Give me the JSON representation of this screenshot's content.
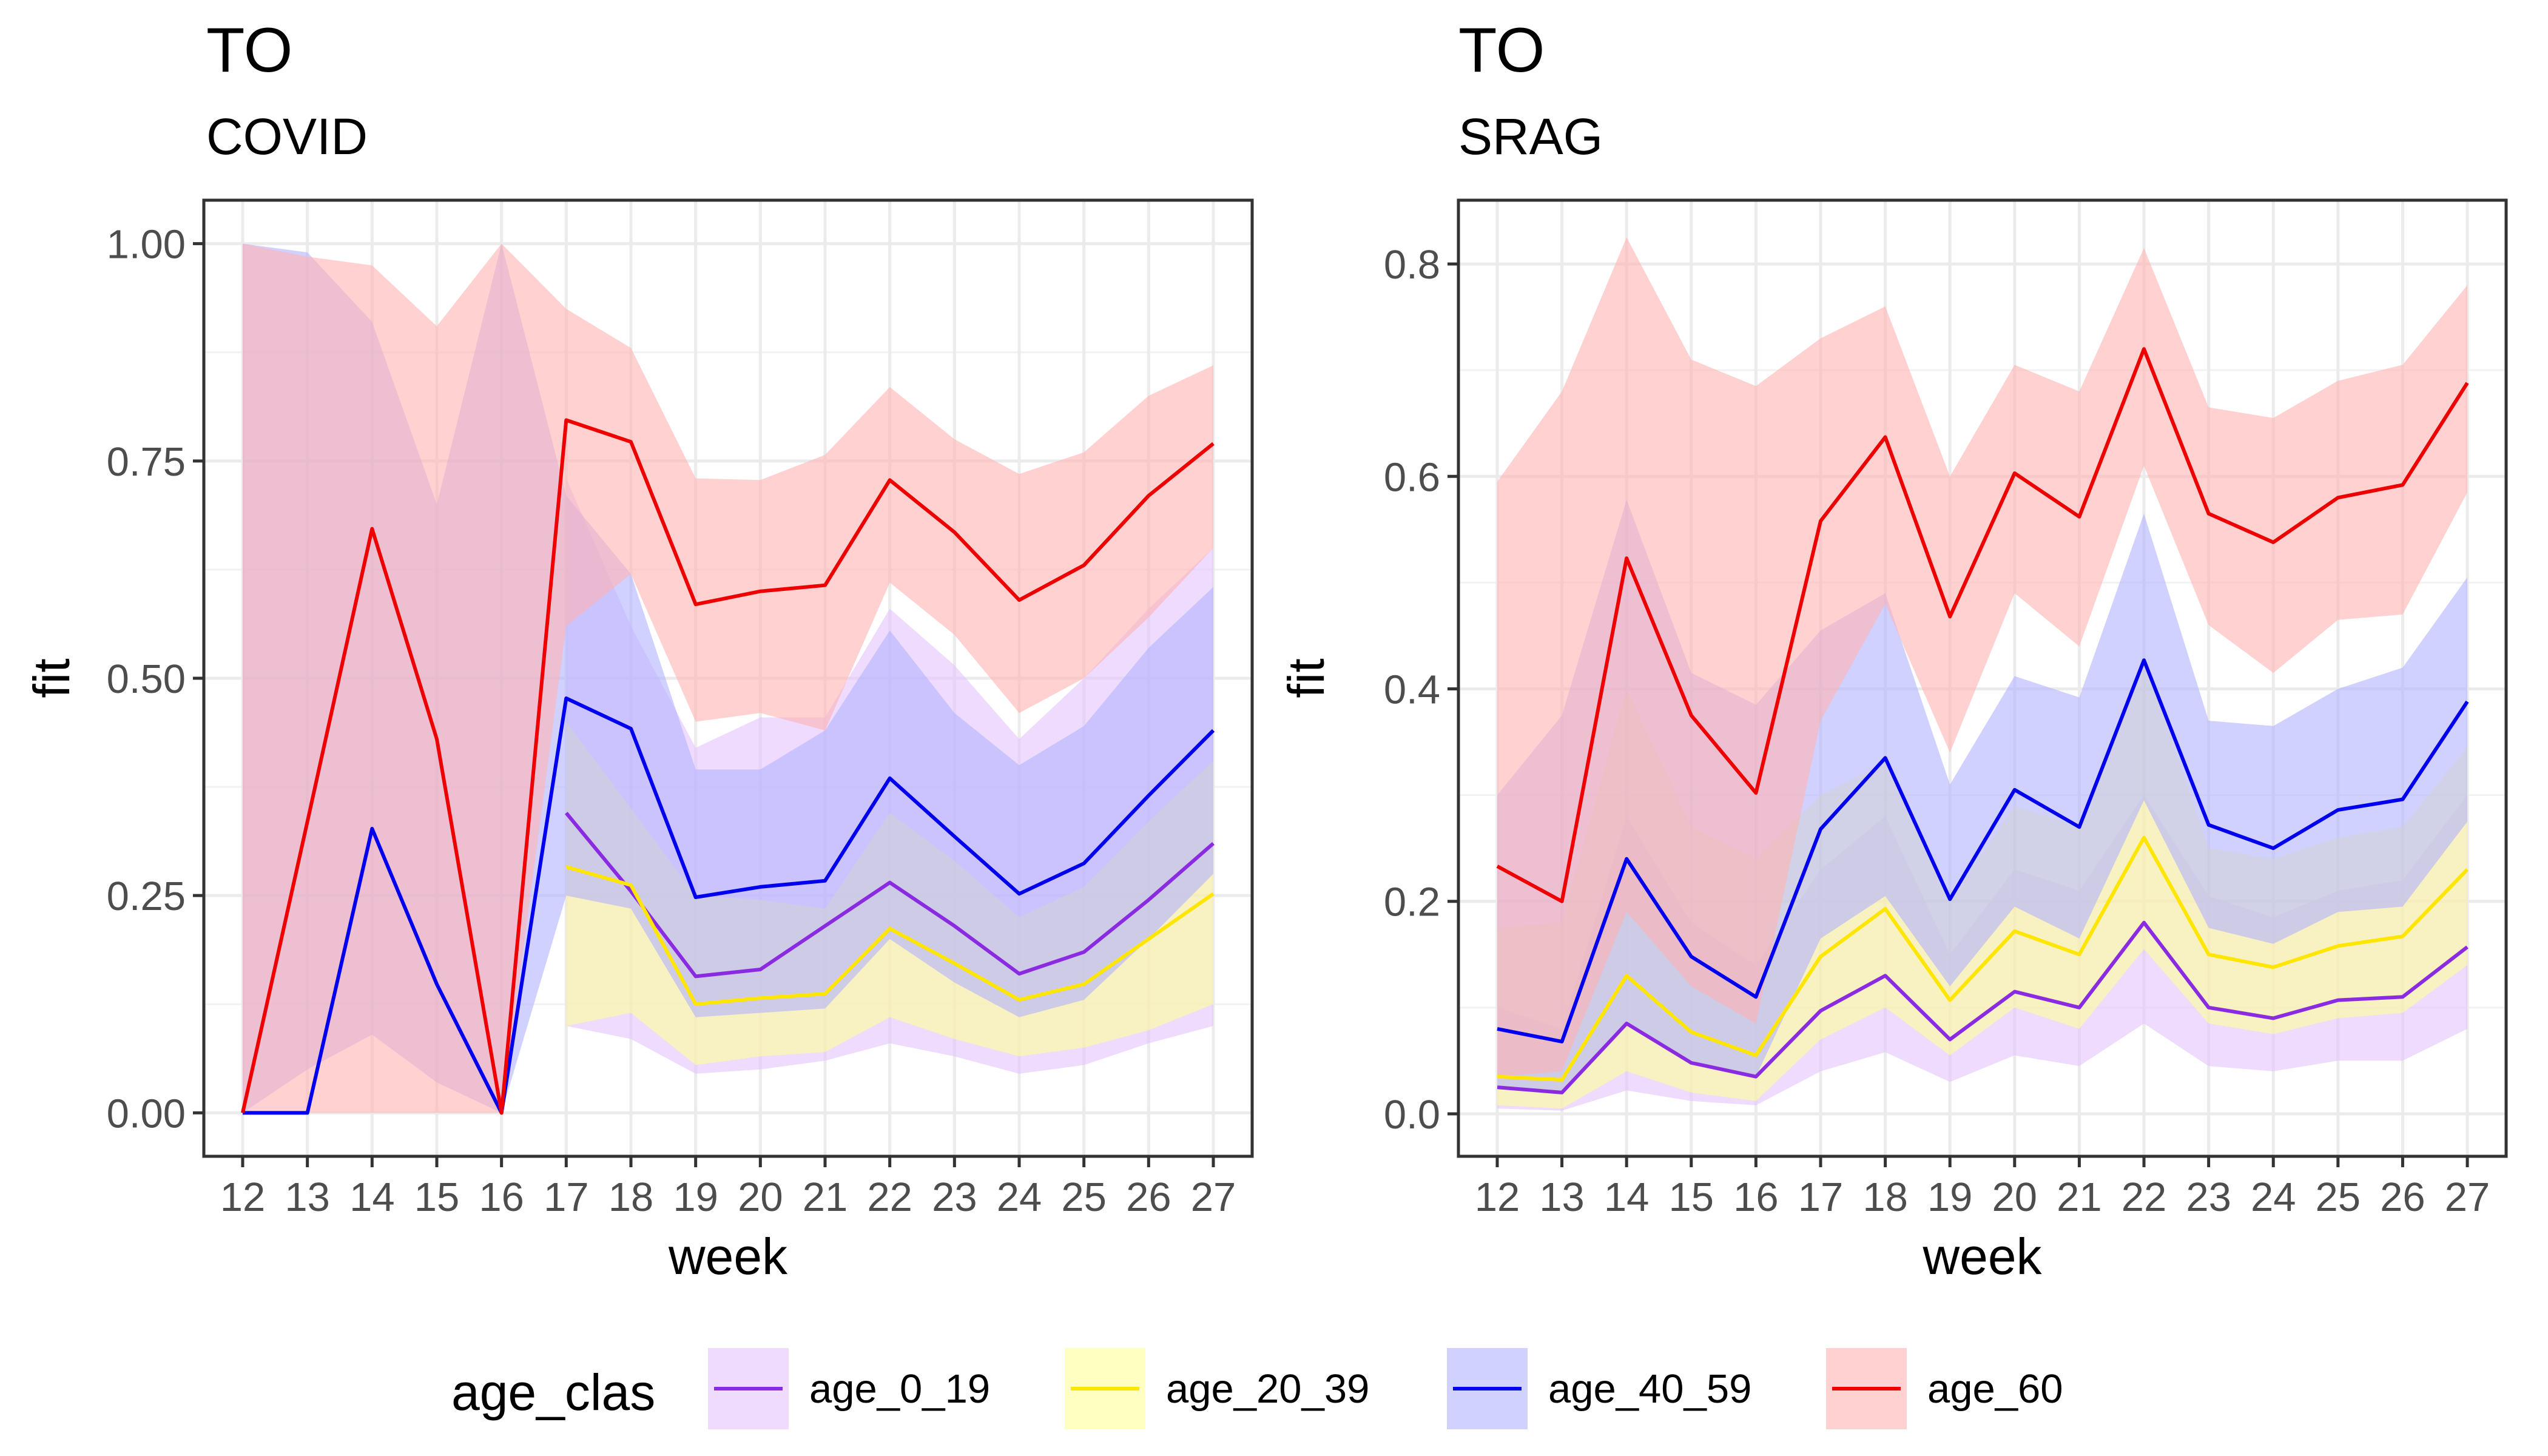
{
  "legend": {
    "title": "age_clas",
    "position": "bottom",
    "items": [
      {
        "key": "age_0_19",
        "label": "age_0_19",
        "line_color": "#8A2BE2",
        "fill_color": "#E3C3FB"
      },
      {
        "key": "age_20_39",
        "label": "age_20_39",
        "line_color": "#FFE600",
        "fill_color": "#FFFF99"
      },
      {
        "key": "age_40_59",
        "label": "age_40_59",
        "line_color": "#0000EE",
        "fill_color": "#B3B3FF"
      },
      {
        "key": "age_60",
        "label": "age_60",
        "line_color": "#EE0000",
        "fill_color": "#FFB3B3"
      }
    ]
  },
  "chart_data": [
    {
      "type": "line",
      "title": "TO",
      "subtitle": "COVID",
      "xlabel": "week",
      "ylabel": "fit",
      "grid": true,
      "x": [
        12,
        13,
        14,
        15,
        16,
        17,
        18,
        19,
        20,
        21,
        22,
        23,
        24,
        25,
        26,
        27
      ],
      "xlim": [
        11.4,
        27.6
      ],
      "ylim": [
        -0.05,
        1.05
      ],
      "yticks": [
        0,
        0.25,
        0.5,
        0.75,
        1.0
      ],
      "ytick_labels": [
        "0.00",
        "0.25",
        "0.50",
        "0.75",
        "1.00"
      ],
      "series": [
        {
          "name": "age_0_19",
          "values": [
            null,
            null,
            null,
            null,
            null,
            0.345,
            0.255,
            0.157,
            0.165,
            0.215,
            0.265,
            0.215,
            0.16,
            0.185,
            0.245,
            0.31
          ],
          "lower": [
            null,
            null,
            null,
            null,
            null,
            0.1,
            0.085,
            0.045,
            0.05,
            0.06,
            0.08,
            0.065,
            0.045,
            0.055,
            0.08,
            0.1
          ],
          "upper": [
            null,
            null,
            null,
            null,
            null,
            0.73,
            0.56,
            0.42,
            0.455,
            0.455,
            0.58,
            0.515,
            0.43,
            0.5,
            0.58,
            0.65
          ]
        },
        {
          "name": "age_20_39",
          "values": [
            null,
            null,
            null,
            null,
            null,
            0.283,
            0.262,
            0.125,
            0.132,
            0.137,
            0.212,
            0.172,
            0.13,
            0.148,
            0.2,
            0.252
          ],
          "lower": [
            null,
            null,
            null,
            null,
            null,
            0.1,
            0.115,
            0.055,
            0.065,
            0.07,
            0.11,
            0.085,
            0.065,
            0.075,
            0.095,
            0.125
          ],
          "upper": [
            null,
            null,
            null,
            null,
            null,
            0.45,
            0.35,
            0.25,
            0.245,
            0.235,
            0.345,
            0.29,
            0.225,
            0.26,
            0.335,
            0.405
          ]
        },
        {
          "name": "age_40_59",
          "values": [
            0.0,
            0.0,
            0.327,
            0.148,
            0.0,
            0.477,
            0.442,
            0.248,
            0.26,
            0.267,
            0.385,
            0.318,
            0.252,
            0.287,
            0.365,
            0.44
          ],
          "lower": [
            0.0,
            0.05,
            0.09,
            0.035,
            0.0,
            0.25,
            0.235,
            0.11,
            0.115,
            0.12,
            0.2,
            0.15,
            0.11,
            0.13,
            0.2,
            0.275
          ],
          "upper": [
            1.0,
            0.99,
            0.91,
            0.7,
            1.0,
            0.71,
            0.62,
            0.395,
            0.395,
            0.44,
            0.555,
            0.46,
            0.4,
            0.445,
            0.535,
            0.605
          ]
        },
        {
          "name": "age_60",
          "values": [
            0.0,
            0.335,
            0.672,
            0.43,
            0.0,
            0.797,
            0.772,
            0.585,
            0.6,
            0.607,
            0.728,
            0.668,
            0.59,
            0.63,
            0.71,
            0.77
          ],
          "lower": [
            0.0,
            0.0,
            0.0,
            0.0,
            0.0,
            0.56,
            0.62,
            0.45,
            0.46,
            0.44,
            0.61,
            0.55,
            0.46,
            0.5,
            0.57,
            0.65
          ],
          "upper": [
            1.0,
            0.985,
            0.975,
            0.905,
            1.0,
            0.925,
            0.88,
            0.73,
            0.728,
            0.757,
            0.835,
            0.775,
            0.735,
            0.76,
            0.825,
            0.86
          ]
        }
      ]
    },
    {
      "type": "line",
      "title": "TO",
      "subtitle": "SRAG",
      "xlabel": "week",
      "ylabel": "fit",
      "grid": true,
      "x": [
        12,
        13,
        14,
        15,
        16,
        17,
        18,
        19,
        20,
        21,
        22,
        23,
        24,
        25,
        26,
        27
      ],
      "xlim": [
        11.4,
        27.6
      ],
      "ylim": [
        -0.04,
        0.86
      ],
      "yticks": [
        0,
        0.2,
        0.4,
        0.6,
        0.8
      ],
      "ytick_labels": [
        "0.0",
        "0.2",
        "0.4",
        "0.6",
        "0.8"
      ],
      "series": [
        {
          "name": "age_0_19",
          "values": [
            0.025,
            0.02,
            0.085,
            0.048,
            0.035,
            0.097,
            0.13,
            0.07,
            0.115,
            0.1,
            0.18,
            0.1,
            0.09,
            0.107,
            0.11,
            0.157
          ],
          "lower": [
            0.005,
            0.003,
            0.022,
            0.012,
            0.008,
            0.04,
            0.058,
            0.03,
            0.055,
            0.045,
            0.085,
            0.045,
            0.04,
            0.05,
            0.05,
            0.08
          ],
          "upper": [
            0.1,
            0.08,
            0.28,
            0.18,
            0.14,
            0.23,
            0.28,
            0.15,
            0.23,
            0.21,
            0.3,
            0.205,
            0.185,
            0.21,
            0.22,
            0.3
          ]
        },
        {
          "name": "age_20_39",
          "values": [
            0.035,
            0.032,
            0.13,
            0.077,
            0.055,
            0.148,
            0.193,
            0.107,
            0.172,
            0.15,
            0.26,
            0.15,
            0.138,
            0.158,
            0.167,
            0.23
          ],
          "lower": [
            0.008,
            0.005,
            0.04,
            0.02,
            0.012,
            0.07,
            0.1,
            0.055,
            0.1,
            0.08,
            0.155,
            0.085,
            0.075,
            0.09,
            0.095,
            0.14
          ],
          "upper": [
            0.175,
            0.18,
            0.4,
            0.27,
            0.24,
            0.3,
            0.33,
            0.2,
            0.29,
            0.27,
            0.43,
            0.25,
            0.24,
            0.26,
            0.27,
            0.345
          ]
        },
        {
          "name": "age_40_59",
          "values": [
            0.08,
            0.068,
            0.24,
            0.148,
            0.11,
            0.268,
            0.335,
            0.202,
            0.305,
            0.27,
            0.427,
            0.272,
            0.25,
            0.286,
            0.296,
            0.388
          ],
          "lower": [
            0.025,
            0.02,
            0.085,
            0.05,
            0.035,
            0.165,
            0.205,
            0.12,
            0.195,
            0.165,
            0.295,
            0.175,
            0.16,
            0.19,
            0.195,
            0.275
          ],
          "upper": [
            0.3,
            0.375,
            0.578,
            0.415,
            0.385,
            0.455,
            0.49,
            0.31,
            0.412,
            0.392,
            0.565,
            0.37,
            0.365,
            0.4,
            0.42,
            0.505
          ]
        },
        {
          "name": "age_60",
          "values": [
            0.233,
            0.2,
            0.523,
            0.375,
            0.302,
            0.558,
            0.637,
            0.468,
            0.603,
            0.562,
            0.72,
            0.565,
            0.538,
            0.58,
            0.592,
            0.688
          ],
          "lower": [
            0.035,
            0.04,
            0.19,
            0.12,
            0.085,
            0.37,
            0.48,
            0.34,
            0.49,
            0.44,
            0.61,
            0.46,
            0.415,
            0.465,
            0.47,
            0.585
          ],
          "upper": [
            0.595,
            0.68,
            0.825,
            0.71,
            0.685,
            0.73,
            0.76,
            0.6,
            0.705,
            0.68,
            0.815,
            0.665,
            0.655,
            0.69,
            0.705,
            0.78
          ]
        }
      ]
    }
  ]
}
